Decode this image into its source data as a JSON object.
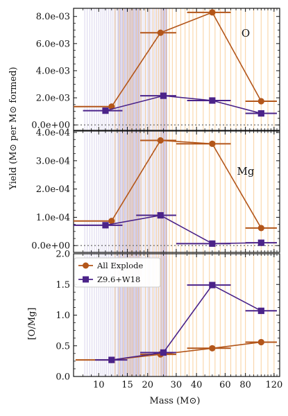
{
  "colors": {
    "all_explode": "#b3561a",
    "z96_w18": "#4b2389",
    "orange_band": "#f5b86a",
    "purple_band": "#a89cd4",
    "axis": "#111111",
    "zero_line": "#777777"
  },
  "figure": {
    "ylabel": "Yield (M⊙ per M⊙ formed)",
    "xlabel": "Mass (M⊙)"
  },
  "legend": {
    "placement": "top-left of bottom panel",
    "entries": [
      "All Explode",
      "Z9.6+W18"
    ]
  },
  "chart_data": [
    {
      "type": "scatter",
      "panel_label": "O",
      "x_scale": "log",
      "xlim": [
        7,
        130
      ],
      "ylim": [
        -0.0004,
        0.0086
      ],
      "yticks": [
        "0.0e+00",
        "2.0e-03",
        "4.0e-03",
        "6.0e-03",
        "8.0e-03"
      ],
      "ytick_values": [
        0,
        0.002,
        0.004,
        0.006,
        0.008
      ],
      "zero_line": true,
      "series": [
        {
          "name": "All Explode",
          "marker": "circle",
          "points": [
            {
              "x": 12,
              "y": 0.00135,
              "xlo": 7,
              "xhi": 12
            },
            {
              "x": 24,
              "y": 0.0068,
              "xlo": 18,
              "xhi": 30
            },
            {
              "x": 50,
              "y": 0.0083,
              "xlo": 35,
              "xhi": 65
            },
            {
              "x": 100,
              "y": 0.00175,
              "xlo": 80,
              "xhi": 125
            }
          ]
        },
        {
          "name": "Z9.6+W18",
          "marker": "square",
          "points": [
            {
              "x": 11,
              "y": 0.00105,
              "xlo": 8,
              "xhi": 14
            },
            {
              "x": 25,
              "y": 0.00215,
              "xlo": 18,
              "xhi": 30
            },
            {
              "x": 50,
              "y": 0.0018,
              "xlo": 35,
              "xhi": 65
            },
            {
              "x": 100,
              "y": 0.00085,
              "xlo": 80,
              "xhi": 125
            }
          ]
        }
      ]
    },
    {
      "type": "scatter",
      "panel_label": "Mg",
      "x_scale": "log",
      "xlim": [
        7,
        130
      ],
      "ylim": [
        -2.4e-05,
        0.000405
      ],
      "yticks": [
        "0.0e+00",
        "1.0e-04",
        "2.0e-04",
        "3.0e-04",
        "4.0e-04"
      ],
      "ytick_values": [
        0,
        0.0001,
        0.0002,
        0.0003,
        0.0004
      ],
      "zero_line": true,
      "series": [
        {
          "name": "All Explode",
          "marker": "circle",
          "points": [
            {
              "x": 12,
              "y": 8.7e-05,
              "xlo": 7,
              "xhi": 12
            },
            {
              "x": 24,
              "y": 0.000372,
              "xlo": 18,
              "xhi": 30
            },
            {
              "x": 50,
              "y": 0.00036,
              "xlo": 30,
              "xhi": 65
            },
            {
              "x": 100,
              "y": 6.2e-05,
              "xlo": 80,
              "xhi": 125
            }
          ]
        },
        {
          "name": "Z9.6+W18",
          "marker": "square",
          "points": [
            {
              "x": 11,
              "y": 7.2e-05,
              "xlo": 7,
              "xhi": 14
            },
            {
              "x": 24,
              "y": 0.000107,
              "xlo": 17,
              "xhi": 30
            },
            {
              "x": 50,
              "y": 7e-06,
              "xlo": 30,
              "xhi": 65
            },
            {
              "x": 100,
              "y": 1e-05,
              "xlo": 80,
              "xhi": 125
            }
          ]
        }
      ]
    },
    {
      "type": "scatter",
      "ylabel": "[O/Mg]",
      "x_scale": "log",
      "xlim": [
        7,
        130
      ],
      "ylim": [
        0,
        2.0
      ],
      "yticks": [
        "0.0",
        "0.5",
        "1.0",
        "1.5",
        "2.0"
      ],
      "ytick_values": [
        0,
        0.5,
        1.0,
        1.5,
        2.0
      ],
      "xticks": [
        "10",
        "15",
        "20",
        "30",
        "40",
        "60",
        "80",
        "120"
      ],
      "xtick_values": [
        10,
        15,
        20,
        30,
        40,
        60,
        80,
        120
      ],
      "series": [
        {
          "name": "All Explode",
          "marker": "circle",
          "points": [
            {
              "x": 12,
              "y": 0.27,
              "xlo": 7.2,
              "xhi": 12
            },
            {
              "x": 24,
              "y": 0.36,
              "xlo": 18,
              "xhi": 30
            },
            {
              "x": 50,
              "y": 0.46,
              "xlo": 35,
              "xhi": 65
            },
            {
              "x": 100,
              "y": 0.56,
              "xlo": 80,
              "xhi": 125
            }
          ]
        },
        {
          "name": "Z9.6+W18",
          "marker": "square",
          "points": [
            {
              "x": 12,
              "y": 0.27,
              "xlo": 9.5,
              "xhi": 15
            },
            {
              "x": 25,
              "y": 0.39,
              "xlo": 18,
              "xhi": 30
            },
            {
              "x": 50,
              "y": 1.49,
              "xlo": 35,
              "xhi": 65
            },
            {
              "x": 100,
              "y": 1.07,
              "xlo": 80,
              "xhi": 125
            }
          ]
        }
      ]
    }
  ],
  "background_bands": {
    "purple_masses": [
      8.2,
      8.5,
      8.8,
      9.1,
      9.4,
      9.7,
      10.0,
      10.3,
      10.6,
      10.9,
      11.2,
      11.5,
      11.8,
      12.1,
      12.4,
      12.7,
      13.0,
      13.2,
      13.4,
      13.6,
      13.8,
      14.0,
      14.2,
      14.4,
      14.6,
      14.8,
      15.0,
      15.2,
      15.4,
      15.6,
      15.8,
      16.0,
      16.2,
      16.4,
      16.6,
      16.8,
      17.0,
      17.2,
      17.4,
      17.6,
      17.8,
      18.0,
      18.5,
      19.0,
      19.5,
      20.0,
      20.3,
      20.6,
      21.0,
      21.5,
      22.0,
      22.5,
      23.0,
      23.5,
      24.0,
      24.5,
      25.0,
      25.3,
      25.6,
      26.0,
      26.3
    ],
    "orange_masses": [
      12.6,
      13.4,
      14.2,
      15.0,
      15.4,
      15.8,
      16.2,
      17.0,
      17.6,
      18.2,
      19.4,
      20.4,
      21.6,
      22.6,
      23.4,
      24.2,
      25.0,
      26.0,
      27.2,
      28.4,
      30.0,
      32.0,
      34.0,
      36.0,
      38.0,
      40.0,
      44.0,
      48.0,
      52.0,
      56.0,
      60.0,
      65.0,
      70.0,
      75.0,
      80.0,
      90.0,
      100.0,
      110.0,
      120.0
    ]
  }
}
